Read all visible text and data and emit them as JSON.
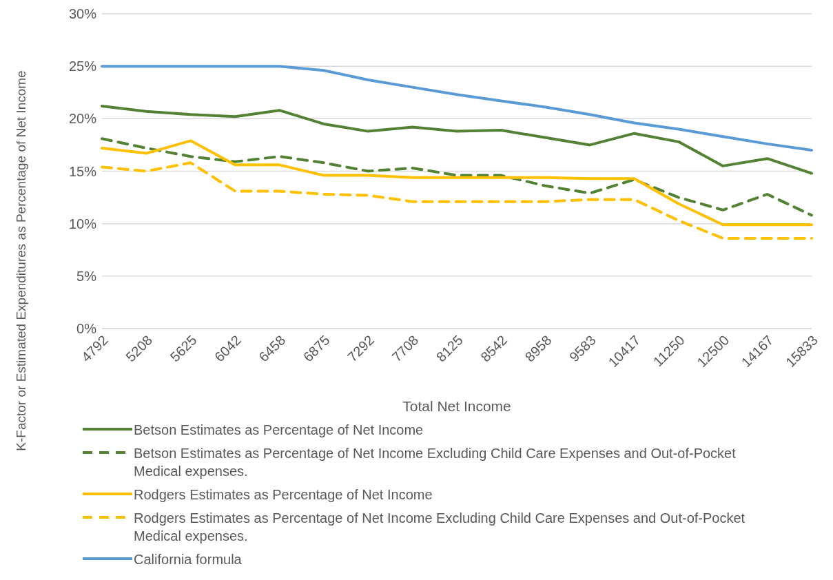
{
  "chart_data": {
    "type": "line",
    "xlabel": "Total Net Income",
    "ylabel": "K-Factor or Estimated Expenditures as Percentage of Net Income",
    "categories": [
      "4792",
      "5208",
      "5625",
      "6042",
      "6458",
      "6875",
      "7292",
      "7708",
      "8125",
      "8542",
      "8958",
      "9583",
      "10417",
      "11250",
      "12500",
      "14167",
      "15833"
    ],
    "ylim": [
      0,
      30
    ],
    "yticks": [
      {
        "value": 0,
        "label": "0%"
      },
      {
        "value": 5,
        "label": "5%"
      },
      {
        "value": 10,
        "label": "10%"
      },
      {
        "value": 15,
        "label": "15%"
      },
      {
        "value": 20,
        "label": "20%"
      },
      {
        "value": 25,
        "label": "25%"
      },
      {
        "value": 30,
        "label": "30%"
      }
    ],
    "grid": "y",
    "legend": "bottom",
    "marker": "none",
    "series": [
      {
        "name": "Betson Estimates as Percentage of Net Income",
        "color": "#548235",
        "line_style": "solid",
        "values": [
          21.2,
          20.7,
          20.4,
          20.2,
          20.8,
          19.5,
          18.8,
          19.2,
          18.8,
          18.9,
          18.2,
          17.5,
          18.6,
          17.8,
          15.5,
          16.2,
          14.8
        ]
      },
      {
        "name": "Betson Estimates as Percentage of Net Income Excluding Child Care Expenses and Out-of-Pocket Medical expenses.",
        "color": "#548235",
        "line_style": "dashed",
        "values": [
          18.1,
          17.2,
          16.4,
          15.9,
          16.4,
          15.8,
          15.0,
          15.3,
          14.6,
          14.6,
          13.6,
          12.9,
          14.2,
          12.5,
          11.3,
          12.8,
          10.8
        ]
      },
      {
        "name": "Rodgers Estimates as Percentage of Net Income",
        "color": "#ffc000",
        "line_style": "solid",
        "values": [
          17.2,
          16.7,
          17.9,
          15.6,
          15.6,
          14.6,
          14.6,
          14.4,
          14.4,
          14.4,
          14.4,
          14.3,
          14.3,
          11.9,
          9.9,
          9.9,
          9.9
        ]
      },
      {
        "name": "Rodgers Estimates as Percentage of Net Income Excluding Child Care Expenses and Out-of-Pocket Medical expenses.",
        "color": "#ffc000",
        "line_style": "dashed",
        "values": [
          15.4,
          15.0,
          15.8,
          13.1,
          13.1,
          12.8,
          12.7,
          12.1,
          12.1,
          12.1,
          12.1,
          12.3,
          12.3,
          10.3,
          8.6,
          8.6,
          8.6
        ]
      },
      {
        "name": "California formula",
        "color": "#5b9bd5",
        "line_style": "solid",
        "values": [
          25,
          25,
          25,
          25,
          25,
          24.6,
          23.7,
          23.0,
          22.3,
          21.7,
          21.1,
          20.4,
          19.6,
          19.0,
          18.3,
          17.6,
          17.0
        ]
      }
    ]
  }
}
